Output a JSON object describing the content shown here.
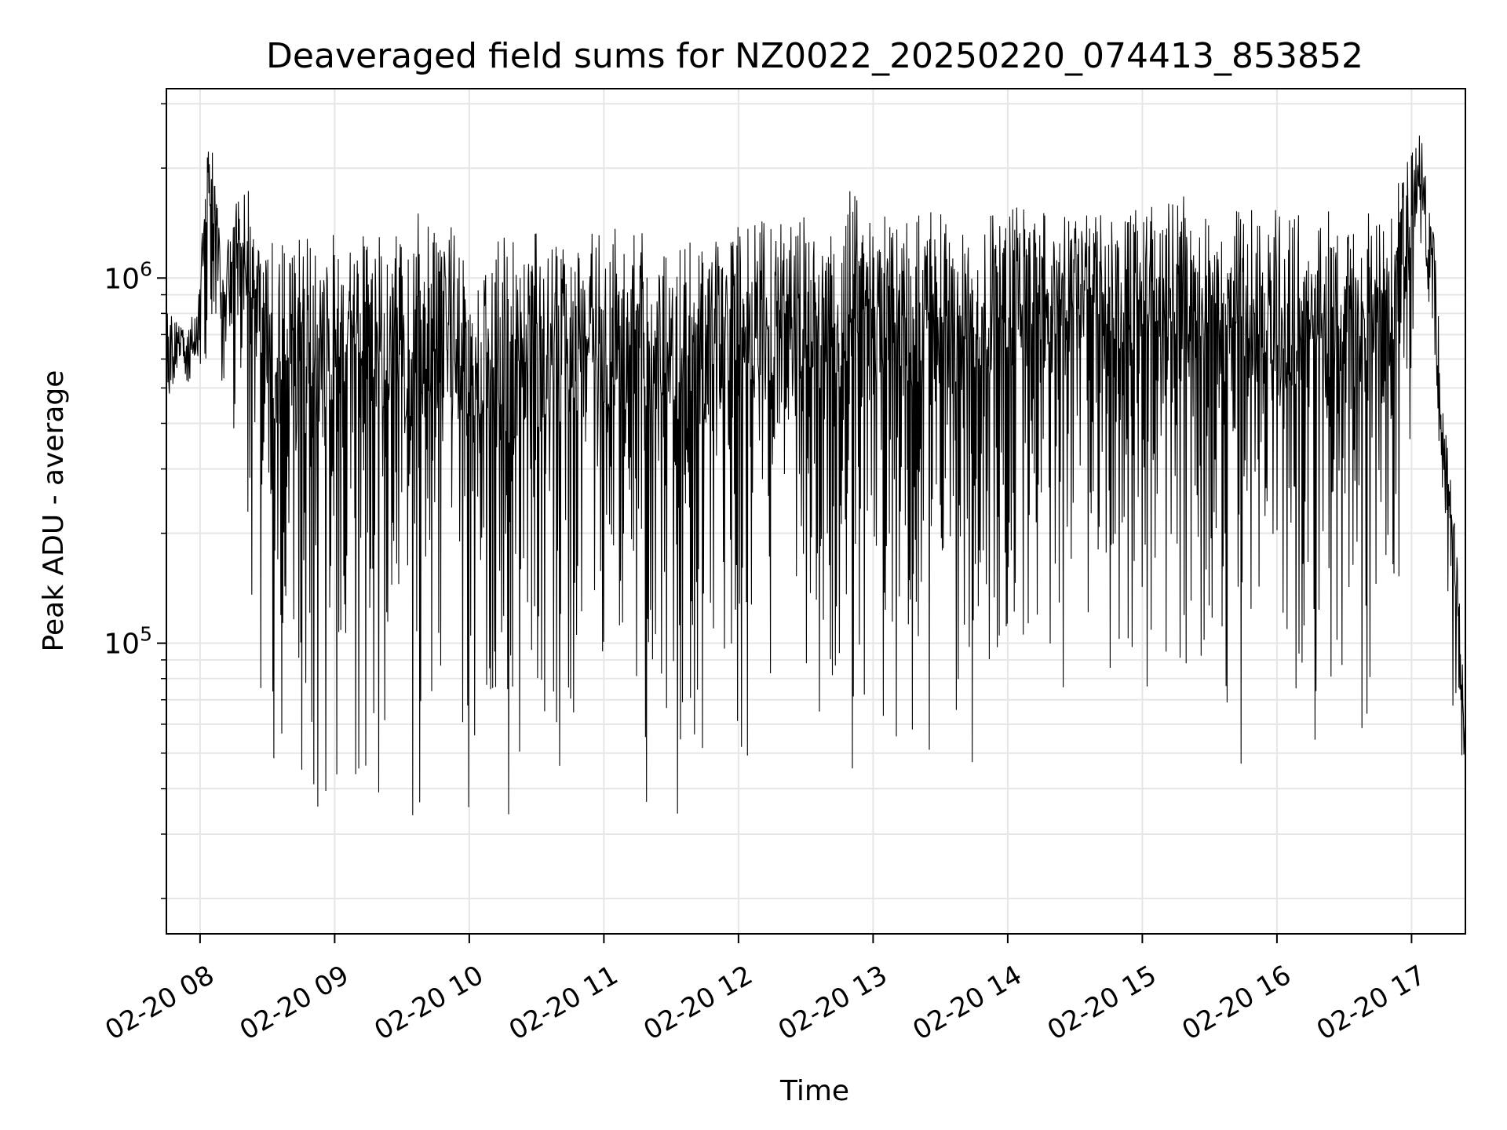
{
  "chart_data": {
    "type": "line",
    "title": "Deaveraged field sums for NZ0022_20250220_074413_853852",
    "xlabel": "Time",
    "ylabel": "Peak ADU - average",
    "yscale": "log",
    "x_range": [
      "02-20 07:45",
      "02-20 17:24"
    ],
    "ylim": [
      16000,
      3300000
    ],
    "grid": true,
    "line_color": "#000000",
    "grid_color": "#e6e6e6",
    "x_ticks": [
      {
        "time": "02-20 08:00",
        "label": "02-20 08"
      },
      {
        "time": "02-20 09:00",
        "label": "02-20 09"
      },
      {
        "time": "02-20 10:00",
        "label": "02-20 10"
      },
      {
        "time": "02-20 11:00",
        "label": "02-20 11"
      },
      {
        "time": "02-20 12:00",
        "label": "02-20 12"
      },
      {
        "time": "02-20 13:00",
        "label": "02-20 13"
      },
      {
        "time": "02-20 14:00",
        "label": "02-20 14"
      },
      {
        "time": "02-20 15:00",
        "label": "02-20 15"
      },
      {
        "time": "02-20 16:00",
        "label": "02-20 16"
      },
      {
        "time": "02-20 17:00",
        "label": "02-20 17"
      }
    ],
    "y_ticks": [
      {
        "value": 100000,
        "base": "10",
        "exp": "5"
      },
      {
        "value": 1000000,
        "base": "10",
        "exp": "6"
      }
    ],
    "series": [
      {
        "x": [
          "02-20 07:45",
          "02-20 07:50",
          "02-20 07:55",
          "02-20 08:00",
          "02-20 08:03",
          "02-20 08:06",
          "02-20 08:10",
          "02-20 08:15",
          "02-20 08:20",
          "02-20 08:25",
          "02-20 08:30",
          "02-20 08:35",
          "02-20 08:40",
          "02-20 08:45",
          "02-20 08:50",
          "02-20 08:55",
          "02-20 09:00",
          "02-20 09:10",
          "02-20 09:20",
          "02-20 09:30",
          "02-20 09:40",
          "02-20 09:50",
          "02-20 10:00",
          "02-20 10:10",
          "02-20 10:15",
          "02-20 10:20",
          "02-20 10:30",
          "02-20 10:40",
          "02-20 10:50",
          "02-20 11:00",
          "02-20 11:10",
          "02-20 11:20",
          "02-20 11:30",
          "02-20 11:40",
          "02-20 11:50",
          "02-20 12:00",
          "02-20 12:10",
          "02-20 12:20",
          "02-20 12:30",
          "02-20 12:40",
          "02-20 12:50",
          "02-20 13:00",
          "02-20 13:10",
          "02-20 13:20",
          "02-20 13:30",
          "02-20 13:40",
          "02-20 13:50",
          "02-20 14:00",
          "02-20 14:10",
          "02-20 14:20",
          "02-20 14:30",
          "02-20 14:40",
          "02-20 14:50",
          "02-20 15:00",
          "02-20 15:10",
          "02-20 15:20",
          "02-20 15:30",
          "02-20 15:40",
          "02-20 15:50",
          "02-20 16:00",
          "02-20 16:10",
          "02-20 16:20",
          "02-20 16:30",
          "02-20 16:40",
          "02-20 16:50",
          "02-20 17:00",
          "02-20 17:05",
          "02-20 17:10",
          "02-20 17:15",
          "02-20 17:20",
          "02-20 17:24"
        ],
        "upper": [
          820000,
          750000,
          720000,
          1000000,
          2600000,
          2300000,
          1100000,
          1600000,
          1900000,
          1400000,
          1350000,
          1300000,
          1350000,
          1300000,
          1300000,
          1350000,
          1350000,
          1350000,
          1300000,
          1400000,
          1650000,
          1400000,
          1300000,
          1350000,
          1300000,
          1300000,
          1350000,
          1350000,
          1300000,
          1350000,
          1400000,
          1400000,
          1300000,
          1400000,
          1300000,
          1450000,
          1600000,
          1400000,
          1500000,
          1400000,
          1800000,
          1500000,
          1600000,
          1500000,
          1550000,
          1500000,
          1500000,
          1550000,
          1600000,
          1550000,
          1650000,
          1600000,
          1700000,
          1600000,
          1700000,
          1850000,
          1600000,
          1600000,
          1550000,
          1550000,
          1500000,
          1500000,
          1600000,
          1650000,
          1500000,
          2400000,
          2600000,
          1300000,
          400000,
          200000,
          60000
        ],
        "lower": [
          450000,
          500000,
          520000,
          600000,
          230000,
          500000,
          400000,
          250000,
          160000,
          90000,
          50000,
          28000,
          26000,
          18000,
          24000,
          21000,
          30000,
          28000,
          30000,
          26000,
          32000,
          28000,
          30000,
          22000,
          21000,
          23000,
          28000,
          30000,
          35000,
          33000,
          32000,
          30000,
          29000,
          21000,
          32000,
          35000,
          45000,
          60000,
          55000,
          44000,
          40000,
          48000,
          45000,
          42000,
          42000,
          36000,
          44000,
          48000,
          65000,
          75000,
          70000,
          65000,
          70000,
          75000,
          55000,
          50000,
          48000,
          32000,
          42000,
          50000,
          42000,
          38000,
          31000,
          45000,
          70000,
          300000,
          1000000,
          700000,
          150000,
          40000,
          20000
        ]
      }
    ]
  }
}
